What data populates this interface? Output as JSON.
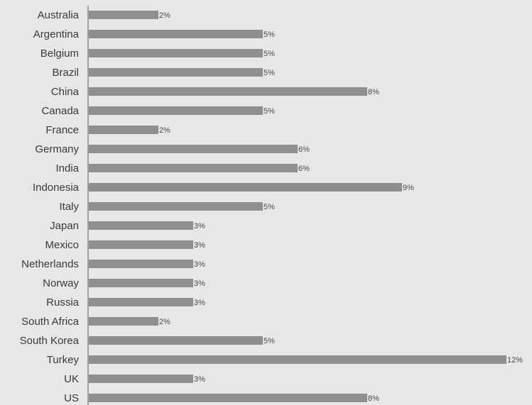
{
  "chart_data": {
    "type": "bar",
    "orientation": "horizontal",
    "categories": [
      "Australia",
      "Argentina",
      "Belgium",
      "Brazil",
      "China",
      "Canada",
      "France",
      "Germany",
      "India",
      "Indonesia",
      "Italy",
      "Japan",
      "Mexico",
      "Netherlands",
      "Norway",
      "Russia",
      "South Africa",
      "South Korea",
      "Turkey",
      "UK",
      "US"
    ],
    "values": [
      2,
      5,
      5,
      5,
      8,
      5,
      2,
      6,
      6,
      9,
      5,
      3,
      3,
      3,
      3,
      3,
      2,
      5,
      12,
      3,
      8
    ],
    "value_labels": [
      "2%",
      "5%",
      "5%",
      "5%",
      "8%",
      "5%",
      "2%",
      "6%",
      "6%",
      "9%",
      "5%",
      "3%",
      "3%",
      "3%",
      "3%",
      "3%",
      "2%",
      "5%",
      "12%",
      "3%",
      "8%"
    ],
    "unit": "%",
    "xlim": [
      0,
      12
    ],
    "grid": false,
    "legend": "none",
    "colors": {
      "bar": "#8f8f8f",
      "background": "#e7e7e6",
      "axis": "#8a8a8a",
      "text": "#3a3a3a"
    }
  }
}
